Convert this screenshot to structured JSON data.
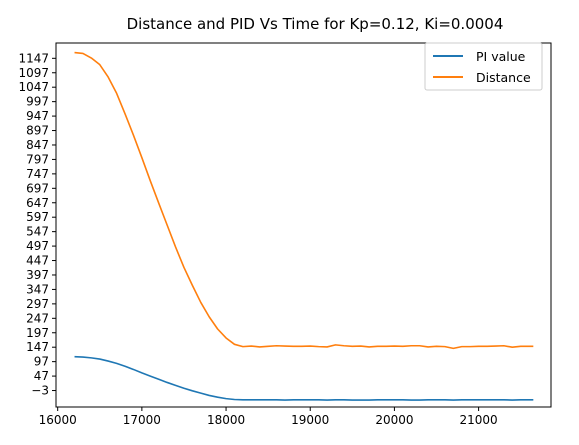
{
  "chart_data": {
    "type": "line",
    "title": "Distance and PID Vs Time for Kp=0.12, Ki=0.0004",
    "xlabel": "",
    "ylabel": "",
    "xlim": [
      15980,
      21860
    ],
    "ylim": [
      -60,
      1200
    ],
    "x_ticks": [
      16000,
      17000,
      18000,
      19000,
      20000,
      21000
    ],
    "x_tick_labels": [
      "16000",
      "17000",
      "18000",
      "19000",
      "20000",
      "21000"
    ],
    "y_ticks": [
      -3,
      47,
      97,
      147,
      197,
      247,
      297,
      347,
      397,
      447,
      497,
      547,
      597,
      647,
      697,
      747,
      797,
      847,
      897,
      947,
      997,
      1047,
      1097,
      1147
    ],
    "y_tick_labels": [
      "−3",
      "47",
      "97",
      "147",
      "197",
      "247",
      "297",
      "347",
      "397",
      "447",
      "497",
      "547",
      "597",
      "647",
      "697",
      "747",
      "797",
      "847",
      "897",
      "947",
      "997",
      "1047",
      "1097",
      "1147"
    ],
    "grid": false,
    "legend_position": "top-right",
    "series": [
      {
        "name": "PI value",
        "color": "#1f77b4",
        "points": [
          [
            16200,
            114
          ],
          [
            16300,
            113
          ],
          [
            16400,
            110
          ],
          [
            16500,
            106
          ],
          [
            16600,
            99
          ],
          [
            16700,
            91
          ],
          [
            16800,
            81
          ],
          [
            16900,
            70
          ],
          [
            17000,
            58
          ],
          [
            17100,
            47
          ],
          [
            17200,
            36
          ],
          [
            17300,
            25
          ],
          [
            17400,
            15
          ],
          [
            17500,
            5
          ],
          [
            17600,
            -4
          ],
          [
            17700,
            -12
          ],
          [
            17800,
            -20
          ],
          [
            17900,
            -26
          ],
          [
            18000,
            -31
          ],
          [
            18100,
            -34
          ],
          [
            18200,
            -35
          ],
          [
            18300,
            -35
          ],
          [
            18400,
            -35
          ],
          [
            18500,
            -35
          ],
          [
            18600,
            -35
          ],
          [
            18700,
            -36
          ],
          [
            18800,
            -35
          ],
          [
            18900,
            -35
          ],
          [
            19000,
            -35
          ],
          [
            19100,
            -35
          ],
          [
            19200,
            -36
          ],
          [
            19300,
            -35
          ],
          [
            19400,
            -35
          ],
          [
            19500,
            -36
          ],
          [
            19600,
            -36
          ],
          [
            19700,
            -36
          ],
          [
            19800,
            -35
          ],
          [
            19900,
            -35
          ],
          [
            20000,
            -35
          ],
          [
            20100,
            -35
          ],
          [
            20200,
            -36
          ],
          [
            20300,
            -36
          ],
          [
            20400,
            -35
          ],
          [
            20500,
            -35
          ],
          [
            20600,
            -35
          ],
          [
            20700,
            -36
          ],
          [
            20800,
            -35
          ],
          [
            20900,
            -35
          ],
          [
            21000,
            -35
          ],
          [
            21100,
            -35
          ],
          [
            21200,
            -35
          ],
          [
            21300,
            -35
          ],
          [
            21400,
            -36
          ],
          [
            21500,
            -35
          ],
          [
            21600,
            -35
          ],
          [
            21650,
            -35
          ]
        ]
      },
      {
        "name": "Distance",
        "color": "#ff7f0e",
        "points": [
          [
            16200,
            1167
          ],
          [
            16300,
            1164
          ],
          [
            16400,
            1148
          ],
          [
            16500,
            1125
          ],
          [
            16600,
            1082
          ],
          [
            16700,
            1026
          ],
          [
            16800,
            955
          ],
          [
            16900,
            881
          ],
          [
            17000,
            803
          ],
          [
            17100,
            723
          ],
          [
            17200,
            646
          ],
          [
            17300,
            570
          ],
          [
            17400,
            494
          ],
          [
            17500,
            423
          ],
          [
            17600,
            361
          ],
          [
            17700,
            302
          ],
          [
            17800,
            252
          ],
          [
            17900,
            210
          ],
          [
            18000,
            179
          ],
          [
            18100,
            157
          ],
          [
            18200,
            149
          ],
          [
            18300,
            151
          ],
          [
            18400,
            148
          ],
          [
            18500,
            150
          ],
          [
            18600,
            152
          ],
          [
            18700,
            151
          ],
          [
            18800,
            150
          ],
          [
            18900,
            150
          ],
          [
            19000,
            151
          ],
          [
            19100,
            149
          ],
          [
            19200,
            148
          ],
          [
            19300,
            155
          ],
          [
            19400,
            152
          ],
          [
            19500,
            150
          ],
          [
            19600,
            151
          ],
          [
            19700,
            148
          ],
          [
            19800,
            150
          ],
          [
            19900,
            150
          ],
          [
            20000,
            151
          ],
          [
            20100,
            150
          ],
          [
            20200,
            152
          ],
          [
            20300,
            152
          ],
          [
            20400,
            148
          ],
          [
            20500,
            150
          ],
          [
            20600,
            149
          ],
          [
            20700,
            143
          ],
          [
            20800,
            149
          ],
          [
            20900,
            149
          ],
          [
            21000,
            150
          ],
          [
            21100,
            150
          ],
          [
            21200,
            151
          ],
          [
            21300,
            152
          ],
          [
            21400,
            147
          ],
          [
            21500,
            150
          ],
          [
            21600,
            150
          ],
          [
            21650,
            150
          ]
        ]
      }
    ]
  }
}
